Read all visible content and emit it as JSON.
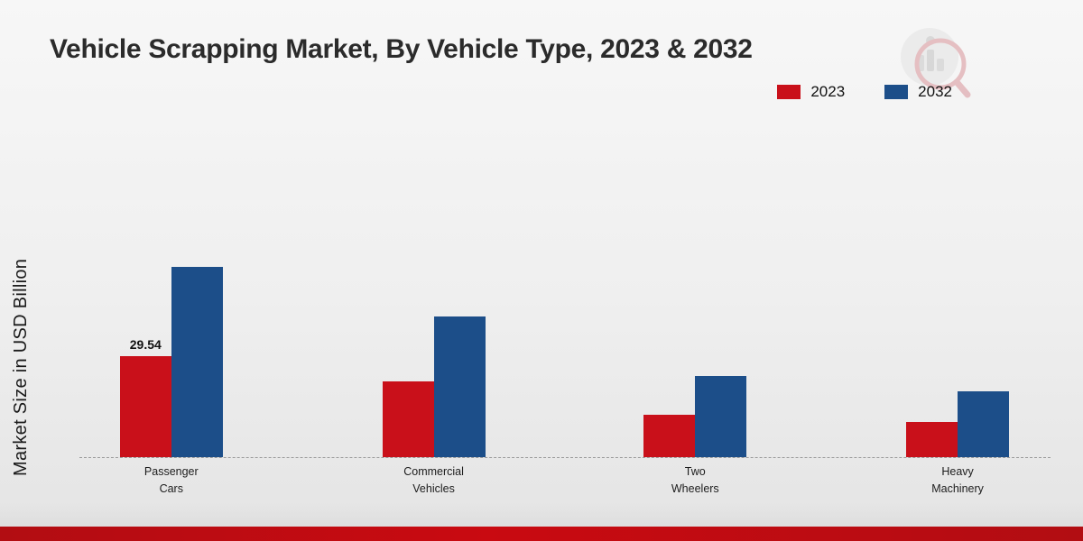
{
  "title": "Vehicle Scrapping Market, By Vehicle Type, 2023 & 2032",
  "y_axis_label": "Market Size in USD Billion",
  "legend": [
    {
      "label": "2023",
      "color": "#c9101a"
    },
    {
      "label": "2032",
      "color": "#1c4e89"
    }
  ],
  "brand_logo_name": "market-research-logo-watermark",
  "chart_data": {
    "type": "bar",
    "title": "Vehicle Scrapping Market, By Vehicle Type, 2023 & 2032",
    "ylabel": "Market Size in USD Billion",
    "xlabel": "",
    "categories": [
      "Passenger Cars",
      "Commercial Vehicles",
      "Two Wheelers",
      "Heavy Machinery"
    ],
    "category_labels_two_line": [
      [
        "Passenger",
        "Cars"
      ],
      [
        "Commercial",
        "Vehicles"
      ],
      [
        "Two",
        "Wheelers"
      ],
      [
        "Heavy",
        "Machinery"
      ]
    ],
    "series": [
      {
        "name": "2023",
        "color": "#c9101a",
        "values": [
          29.54,
          22.0,
          12.3,
          10.2
        ]
      },
      {
        "name": "2032",
        "color": "#1c4e89",
        "values": [
          55.5,
          41.0,
          23.8,
          19.3
        ]
      }
    ],
    "value_labels": [
      {
        "series": "2023",
        "category": "Passenger Cars",
        "text": "29.54"
      }
    ],
    "ylim": [
      0,
      60
    ],
    "grid": false,
    "baseline_style": "dashed",
    "legend_position": "top-right"
  }
}
